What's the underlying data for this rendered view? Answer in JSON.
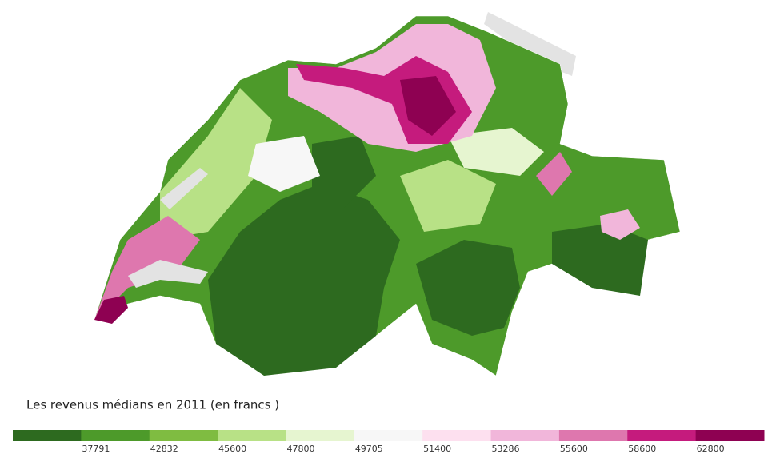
{
  "title": "Les revenus médians en 2011 (en francs )",
  "legend": {
    "colors": [
      "#2d6a1f",
      "#4d9a2a",
      "#7fbc41",
      "#b8e186",
      "#e6f5d0",
      "#f7f7f7",
      "#fde0ef",
      "#f1b6da",
      "#de77ae",
      "#c51b7d",
      "#8e0152"
    ],
    "labels": [
      37791,
      42832,
      45600,
      47800,
      49705,
      51400,
      53286,
      55600,
      58600,
      62800
    ]
  }
}
